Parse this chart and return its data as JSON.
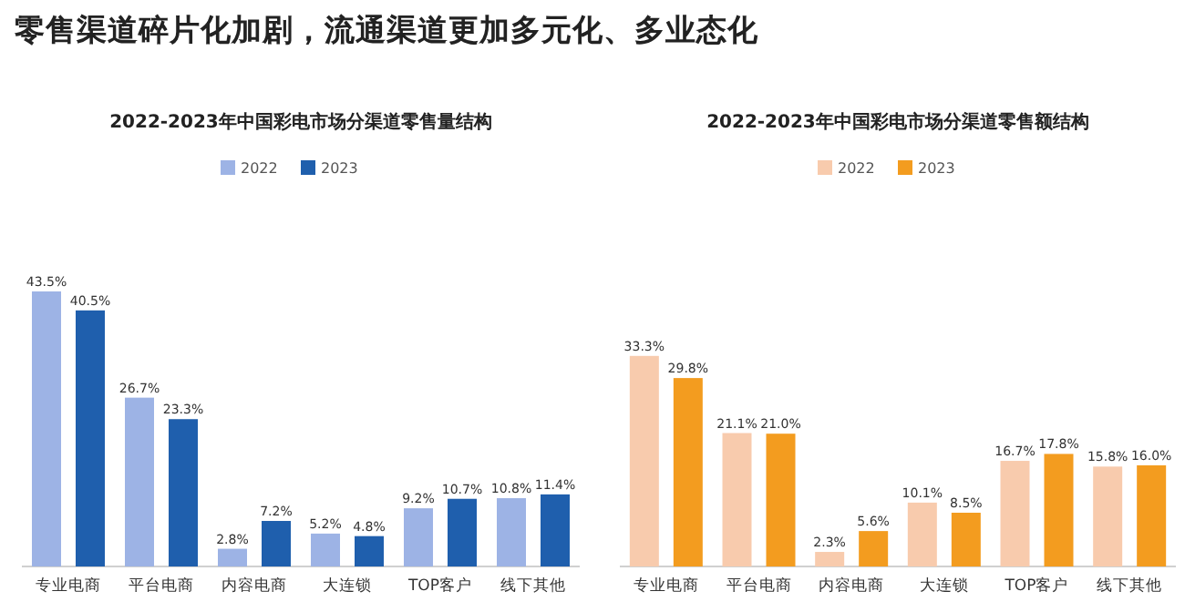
{
  "chart_data": [
    {
      "type": "bar",
      "title": "2022-2023年中国彩电市场分渠道零售量结构",
      "annotations": [
        "零售渠道碎片化加剧，流通渠道更加多元化、多业态化"
      ],
      "categories": [
        "专业电商",
        "平台电商",
        "内容电商",
        "大连锁",
        "TOP客户",
        "线下其他"
      ],
      "legend": "top",
      "series": [
        {
          "name": "2022",
          "color": "#9db3e5",
          "values": [
            43.5,
            26.7,
            2.8,
            5.2,
            9.2,
            10.8
          ],
          "value_labels": [
            "43.5%",
            "26.7%",
            "2.8%",
            "5.2%",
            "9.2%",
            "10.8%"
          ]
        },
        {
          "name": "2023",
          "color": "#1f5fad",
          "values": [
            40.5,
            23.3,
            7.2,
            4.8,
            10.7,
            11.4
          ],
          "value_labels": [
            "40.5%",
            "23.3%",
            "7.2%",
            "4.8%",
            "10.7%",
            "11.4%"
          ]
        }
      ]
    },
    {
      "type": "bar",
      "title": "2022-2023年中国彩电市场分渠道零售额结构",
      "categories": [
        "专业电商",
        "平台电商",
        "内容电商",
        "大连锁",
        "TOP客户",
        "线下其他"
      ],
      "legend": "top",
      "series": [
        {
          "name": "2022",
          "color": "#f8cbad",
          "values": [
            33.3,
            21.1,
            2.3,
            10.1,
            16.7,
            15.8
          ],
          "value_labels": [
            "33.3%",
            "21.1%",
            "2.3%",
            "10.1%",
            "16.7%",
            "15.8%"
          ]
        },
        {
          "name": "2023",
          "color": "#f39c1f",
          "values": [
            29.8,
            21.0,
            5.6,
            8.5,
            17.8,
            16.0
          ],
          "value_labels": [
            "29.8%",
            "21.0%",
            "5.6%",
            "8.5%",
            "17.8%",
            "16.0%"
          ]
        }
      ]
    }
  ]
}
